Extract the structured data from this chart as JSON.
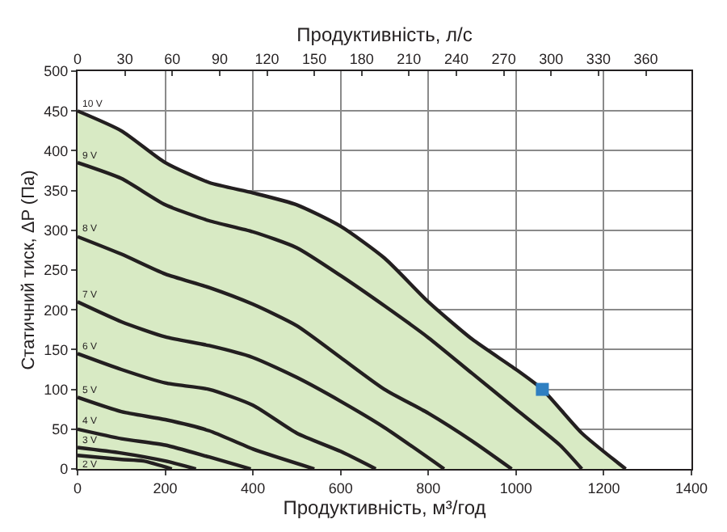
{
  "chart_data": {
    "type": "line",
    "xlabel": "Продуктивність, м³/год",
    "x2label": "Продуктивність, л/с",
    "ylabel": "Статичний тиск, ΔP (Па)",
    "xlim": [
      0,
      1400
    ],
    "xticks": [
      0,
      200,
      400,
      600,
      800,
      1000,
      1200,
      1400
    ],
    "x2lim": [
      0,
      388.9
    ],
    "x2ticks": [
      0,
      30,
      60,
      90,
      120,
      150,
      180,
      210,
      240,
      270,
      300,
      330,
      360
    ],
    "ylim": [
      0,
      500
    ],
    "yticks": [
      0,
      50,
      100,
      150,
      200,
      250,
      300,
      350,
      400,
      450,
      500
    ],
    "grid": true,
    "marker": "none",
    "line_style": "solid",
    "series": [
      {
        "name": "10 V",
        "type": "area",
        "color": "#231f20",
        "x": [
          0,
          100,
          200,
          300,
          400,
          500,
          600,
          700,
          800,
          900,
          1000,
          1060,
          1150,
          1250
        ],
        "values": [
          450,
          425,
          385,
          360,
          347,
          332,
          305,
          265,
          210,
          163,
          125,
          100,
          45,
          0
        ]
      },
      {
        "name": "9 V",
        "color": "#231f20",
        "x": [
          0,
          100,
          200,
          300,
          400,
          500,
          600,
          700,
          800,
          900,
          1000,
          1100,
          1150
        ],
        "values": [
          385,
          365,
          332,
          312,
          298,
          278,
          243,
          205,
          165,
          120,
          75,
          30,
          0
        ]
      },
      {
        "name": "8 V",
        "color": "#231f20",
        "x": [
          0,
          100,
          200,
          300,
          400,
          500,
          600,
          700,
          800,
          900,
          990
        ],
        "values": [
          292,
          270,
          245,
          228,
          207,
          180,
          140,
          100,
          70,
          35,
          0
        ]
      },
      {
        "name": "7 V",
        "color": "#231f20",
        "x": [
          0,
          100,
          200,
          300,
          400,
          500,
          600,
          700,
          836
        ],
        "values": [
          210,
          185,
          166,
          155,
          140,
          115,
          85,
          52,
          0
        ]
      },
      {
        "name": "6 V",
        "color": "#231f20",
        "x": [
          0,
          100,
          200,
          300,
          400,
          500,
          600,
          680
        ],
        "values": [
          145,
          125,
          108,
          100,
          80,
          45,
          22,
          0
        ]
      },
      {
        "name": "5 V",
        "color": "#231f20",
        "x": [
          0,
          100,
          200,
          300,
          400,
          540
        ],
        "values": [
          90,
          72,
          62,
          48,
          25,
          0
        ]
      },
      {
        "name": "4 V",
        "color": "#231f20",
        "x": [
          0,
          100,
          200,
          300,
          395
        ],
        "values": [
          50,
          38,
          30,
          15,
          0
        ]
      },
      {
        "name": "3 V",
        "color": "#231f20",
        "x": [
          0,
          100,
          200,
          270
        ],
        "values": [
          27,
          20,
          10,
          0
        ]
      },
      {
        "name": "2 V",
        "color": "#231f20",
        "x": [
          0,
          100,
          150,
          215
        ],
        "values": [
          17,
          12,
          10,
          0
        ]
      },
      {
        "type": "scatter",
        "marker": "square",
        "color": "#2f7fc1",
        "x": [
          1060
        ],
        "values": [
          100
        ]
      }
    ]
  }
}
